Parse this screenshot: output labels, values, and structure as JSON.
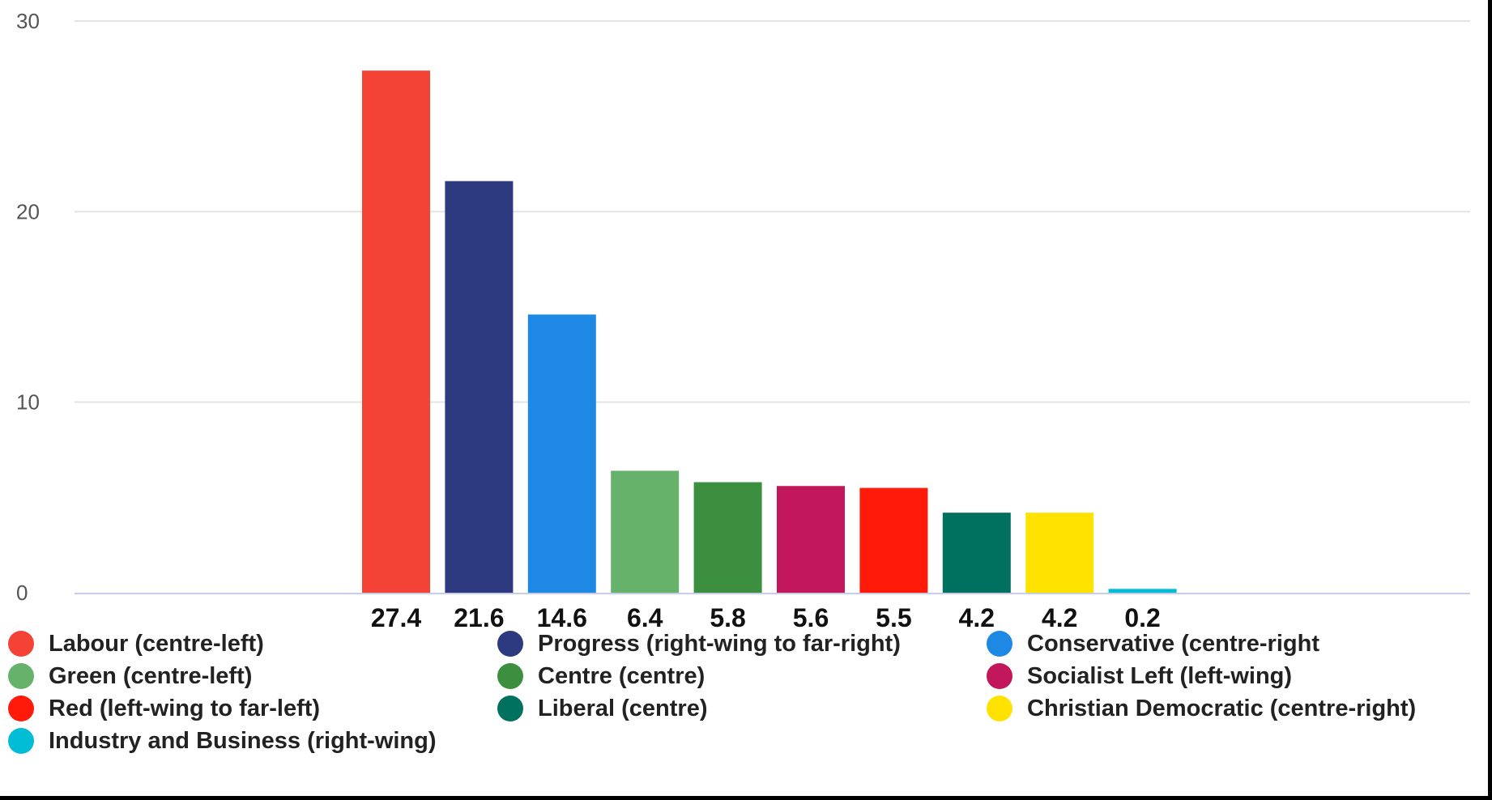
{
  "chart_data": {
    "type": "bar",
    "title": "",
    "xlabel": "",
    "ylabel": "",
    "ylim": [
      0,
      30
    ],
    "yticks": [
      0,
      10,
      20,
      30
    ],
    "grid": true,
    "legend_position": "bottom",
    "categories": [
      "Labour (centre-left)",
      "Progress (right-wing to far-right)",
      "Conservative (centre-right",
      "Green (centre-left)",
      "Centre (centre)",
      "Socialist Left (left-wing)",
      "Red (left-wing to far-left)",
      "Liberal (centre)",
      "Christian Democratic (centre-right)",
      "Industry and Business (right-wing)"
    ],
    "values": [
      27.4,
      21.6,
      14.6,
      6.4,
      5.8,
      5.6,
      5.5,
      4.2,
      4.2,
      0.2
    ],
    "labels": [
      "27.4",
      "21.6",
      "14.6",
      "6.4",
      "5.8",
      "5.6",
      "5.5",
      "4.2",
      "4.2",
      "0.2"
    ],
    "colors": [
      "#f44336",
      "#2e3a80",
      "#1e88e5",
      "#66b26a",
      "#3d8f40",
      "#c2185b",
      "#ff1a0a",
      "#00705f",
      "#ffe200",
      "#00bcd4"
    ]
  }
}
